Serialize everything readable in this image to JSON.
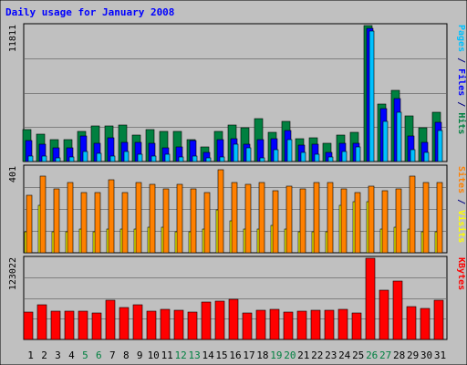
{
  "chart_data": {
    "title": "Daily usage for January 2008",
    "days": [
      "1",
      "2",
      "3",
      "4",
      "5",
      "6",
      "7",
      "8",
      "9",
      "10",
      "11",
      "12",
      "13",
      "14",
      "15",
      "16",
      "17",
      "18",
      "19",
      "20",
      "21",
      "22",
      "23",
      "24",
      "25",
      "26",
      "27",
      "28",
      "29",
      "30",
      "31"
    ],
    "weekend_days": [
      "5",
      "6",
      "12",
      "13",
      "19",
      "20",
      "26",
      "27"
    ],
    "panels": [
      {
        "type": "bar",
        "ymax_label": "11811",
        "ymax": 11811,
        "axis_legend": [
          {
            "text": "Pages",
            "color": "#00c0ff"
          },
          {
            "text": " / ",
            "color": "#000080"
          },
          {
            "text": "Files",
            "color": "#0000ff"
          },
          {
            "text": " / ",
            "color": "#000080"
          },
          {
            "text": "Hits",
            "color": "#008040"
          }
        ],
        "series": [
          {
            "name": "Hits",
            "color": "#008040",
            "values": [
              2800,
              2400,
              1900,
              1900,
              2600,
              3100,
              3100,
              3200,
              2300,
              2800,
              2600,
              2600,
              1900,
              1300,
              2600,
              3200,
              2900,
              3700,
              2500,
              3500,
              2000,
              2100,
              1600,
              2300,
              2500,
              11811,
              5000,
              6200,
              4000,
              2900,
              4300
            ]
          },
          {
            "name": "Files",
            "color": "#0000ff",
            "values": [
              1800,
              1500,
              1200,
              1200,
              2200,
              1600,
              2100,
              1700,
              1700,
              1600,
              1200,
              1300,
              1800,
              800,
              1900,
              2000,
              1500,
              1900,
              2000,
              2700,
              1400,
              1500,
              800,
              1600,
              1600,
              11600,
              4600,
              5500,
              2200,
              1700,
              3400
            ]
          },
          {
            "name": "Pages",
            "color": "#00c0ff",
            "values": [
              500,
              500,
              300,
              400,
              900,
              700,
              500,
              900,
              600,
              500,
              600,
              400,
              500,
              300,
              400,
              1500,
              1200,
              300,
              1000,
              1900,
              800,
              600,
              400,
              900,
              1300,
              11300,
              3500,
              4300,
              1000,
              800,
              2700
            ]
          }
        ]
      },
      {
        "type": "bar",
        "ymax_label": "401",
        "ymax": 401,
        "axis_legend": [
          {
            "text": "Sites",
            "color": "#ff8000"
          },
          {
            "text": " / ",
            "color": "#000080"
          },
          {
            "text": "Visits",
            "color": "#ffff00"
          }
        ],
        "series": [
          {
            "name": "Visits",
            "color": "#ffff00",
            "values": [
              100,
              220,
              100,
              100,
              110,
              100,
              110,
              110,
              110,
              120,
              120,
              100,
              100,
              110,
              200,
              150,
              110,
              110,
              130,
              110,
              100,
              100,
              100,
              220,
              240,
              240,
              110,
              120,
              110,
              100,
              100
            ]
          },
          {
            "name": "Sites",
            "color": "#ff8000",
            "values": [
              270,
              360,
              300,
              330,
              280,
              280,
              340,
              280,
              330,
              320,
              300,
              320,
              300,
              280,
              390,
              330,
              320,
              330,
              290,
              310,
              300,
              330,
              330,
              300,
              280,
              310,
              290,
              300,
              360,
              330,
              330
            ]
          }
        ]
      },
      {
        "type": "bar",
        "ymax_label": "123022",
        "ymax": 123022,
        "axis_legend": [
          {
            "text": "KBytes",
            "color": "#ff0000"
          }
        ],
        "series": [
          {
            "name": "KBytes",
            "color": "#ff0000",
            "values": [
              42000,
              53000,
              43000,
              43000,
              43000,
              40000,
              60000,
              48000,
              53000,
              43000,
              46000,
              44000,
              42000,
              57000,
              58000,
              61000,
              40000,
              44000,
              46000,
              42000,
              43000,
              44000,
              44000,
              46000,
              40000,
              123022,
              75000,
              88000,
              50000,
              47000,
              60000
            ]
          }
        ]
      }
    ]
  }
}
